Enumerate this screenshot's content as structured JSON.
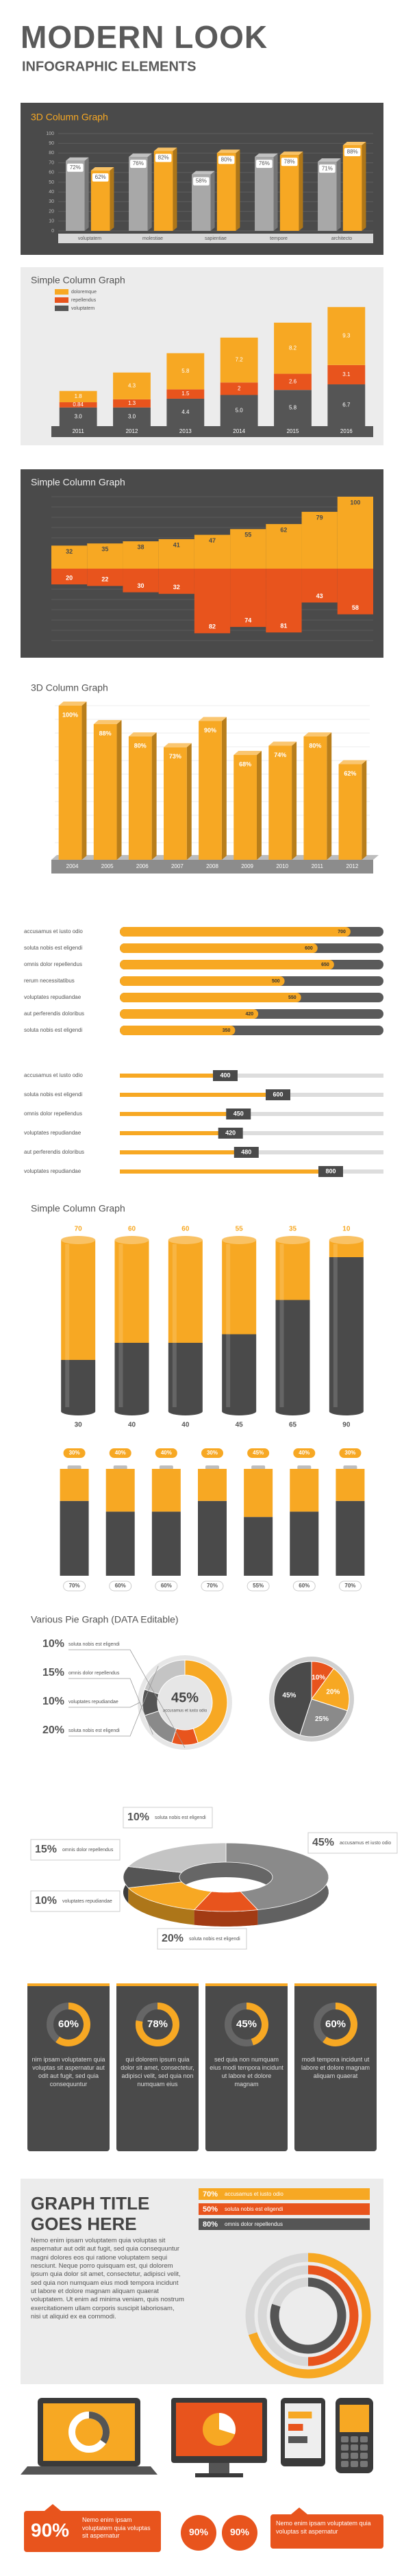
{
  "header": {
    "title": "MODERN LOOK",
    "subtitle": "INFOGRAPHIC ELEMENTS"
  },
  "chart_data": [
    {
      "type": "bar3d",
      "title": "3D Column Graph",
      "categories": [
        "voluptatem",
        "molestiae",
        "sapientiae",
        "tempore",
        "architecto"
      ],
      "series": [
        {
          "color": "#a8a8a8",
          "values": [
            72,
            76,
            58,
            76,
            71
          ],
          "value_labels": [
            "72%",
            "76%",
            "58%",
            "76%",
            "71%"
          ]
        },
        {
          "color": "#f7a823",
          "values": [
            62,
            82,
            80,
            78,
            88
          ],
          "value_labels": [
            "62%",
            "82%",
            "80%",
            "78%",
            "88%"
          ]
        }
      ],
      "ylim": [
        0,
        100
      ],
      "yticks": [
        0,
        10,
        20,
        30,
        40,
        50,
        60,
        70,
        80,
        90,
        100
      ]
    },
    {
      "type": "stacked_bar",
      "title": "Simple Column Graph",
      "categories": [
        "2011",
        "2012",
        "2013",
        "2014",
        "2015",
        "2016"
      ],
      "series": [
        {
          "name": "voluptatem",
          "color": "#555555",
          "values": [
            3.0,
            3.0,
            4.4,
            5.0,
            5.8,
            6.7
          ],
          "value_labels": [
            "3.0",
            "3.0",
            "4.4",
            "5.0",
            "5.8",
            "6.7"
          ]
        },
        {
          "name": "repellendus",
          "color": "#e8541d",
          "values": [
            0.84,
            1.3,
            1.5,
            2.0,
            2.6,
            3.1
          ]
        },
        {
          "name": "doloremque",
          "color": "#f7a823",
          "values": [
            1.8,
            4.3,
            5.8,
            7.2,
            8.2,
            9.3
          ]
        }
      ],
      "ylim": [
        0,
        20
      ]
    },
    {
      "type": "updown",
      "title": "Simple Column Graph",
      "series": [
        {
          "color": "#f7a823",
          "values": [
            32,
            35,
            38,
            41,
            47,
            55,
            62,
            79,
            100
          ]
        },
        {
          "color": "#e8541d",
          "values": [
            20,
            22,
            30,
            32,
            82,
            74,
            81,
            43,
            58
          ]
        }
      ],
      "ylim": [
        0,
        100
      ]
    },
    {
      "type": "column3d",
      "title": "3D Column Graph",
      "categories": [
        "2004",
        "2005",
        "2006",
        "2007",
        "2008",
        "2009",
        "2010",
        "2011",
        "2012"
      ],
      "values": [
        100,
        88,
        80,
        73,
        90,
        68,
        74,
        80,
        62
      ],
      "value_labels": [
        "100%",
        "88%",
        "80%",
        "73%",
        "90%",
        "68%",
        "74%",
        "80%",
        "62%"
      ],
      "color": "#f7a823",
      "ylim": [
        0,
        100
      ]
    },
    {
      "type": "hbar_progress",
      "categories": [
        "accusamus et iusto odio",
        "soluta nobis est eligendi",
        "omnis dolor repellendus",
        "rerum necessitatibus",
        "voluptates repudiandae",
        "aut perferendis doloribus",
        "soluta nobis est eligendi"
      ],
      "values": [
        700,
        600,
        650,
        500,
        550,
        420,
        350
      ],
      "color": "#f7a823",
      "xlim": [
        0,
        800
      ]
    },
    {
      "type": "hbar_marker",
      "categories": [
        "accusamus et iusto odio",
        "soluta nobis est eligendi",
        "omnis dolor repellendus",
        "voluptates repudiandae",
        "aut perferendis doloribus",
        "voluptates repudiandae"
      ],
      "values": [
        400,
        600,
        450,
        420,
        480,
        800
      ],
      "color": "#f7a823",
      "xlim": [
        0,
        1000
      ]
    },
    {
      "type": "cylinder",
      "title": "Simple Column Graph",
      "series": [
        {
          "color": "#f7a823",
          "values": [
            70,
            60,
            60,
            55,
            35,
            10
          ]
        },
        {
          "color": "#4a4a4a",
          "values": [
            30,
            40,
            40,
            45,
            65,
            90
          ]
        }
      ],
      "ylim": [
        0,
        100
      ]
    },
    {
      "type": "battery",
      "series": [
        {
          "color": "#f7a823",
          "values": [
            30,
            40,
            40,
            30,
            45,
            40,
            30
          ],
          "value_labels": [
            "30%",
            "40%",
            "40%",
            "30%",
            "45%",
            "40%",
            "30%"
          ]
        },
        {
          "color": "#4a4a4a",
          "values": [
            70,
            60,
            60,
            70,
            55,
            60,
            70
          ],
          "value_labels": [
            "70%",
            "60%",
            "60%",
            "70%",
            "55%",
            "60%",
            "70%"
          ]
        }
      ],
      "ylim": [
        0,
        100
      ]
    },
    {
      "type": "donut",
      "title": "Various Pie Graph (DATA Editable)",
      "categories": [
        "accusamus et iusto odio",
        "soluta nobis est eligendi",
        "omnis dolor repellendus",
        "voluptates repudiandae",
        "soluta nobis est eligendi"
      ],
      "values": [
        45,
        10,
        15,
        10,
        20
      ],
      "value_labels": [
        "45%",
        "10%",
        "15%",
        "10%",
        "20%"
      ],
      "colors": [
        "#f7a823",
        "#e8541d",
        "#8a8a8a",
        "#555555",
        "#c4c4c4"
      ]
    },
    {
      "type": "pie",
      "values": [
        10,
        20,
        25,
        45
      ],
      "value_labels": [
        "10%",
        "20%",
        "25%",
        "45%"
      ],
      "colors": [
        "#e8541d",
        "#f7a823",
        "#8a8a8a",
        "#4a4a4a"
      ]
    },
    {
      "type": "donut3d",
      "categories": [
        "accusamus et iusto odio",
        "soluta nobis est eligendi",
        "omnis dolor repellendus",
        "voluptates repudiandae",
        "soluta nobis est eligendi"
      ],
      "values": [
        45,
        10,
        15,
        10,
        20
      ],
      "value_labels": [
        "45%",
        "10%",
        "15%",
        "10%",
        "20%"
      ],
      "colors": [
        "#8a8a8a",
        "#e8541d",
        "#f7a823",
        "#555555",
        "#c4c4c4"
      ]
    },
    {
      "type": "donut_cards",
      "values": [
        60,
        78,
        45,
        60
      ],
      "value_labels": [
        "60%",
        "78%",
        "45%",
        "60%"
      ],
      "color": "#f7a823",
      "captions": [
        "nim ipsam voluptatem quia voluptas sit aspernatur aut odit aut fugit, sed quia consequuntur",
        "qui dolorem ipsum quia dolor sit amet, consectetur, adipisci velit, sed quia non numquam eius",
        "sed quia non numquam eius modi tempora incidunt ut labore et dolore magnam",
        "modi tempora incidunt ut labore et dolore magnam aliquam quaerat"
      ]
    },
    {
      "type": "radial_bar",
      "title_lines": [
        "GRAPH TITLE",
        "GOES HERE"
      ],
      "body": "Nemo enim ipsam voluptatem quia voluptas sit aspernatur aut odit aut fugit, sed quia consequuntur magni dolores eos qui ratione voluptatem sequi nesciunt. Neque porro quisquam est, qui dolorem ipsum quia dolor sit amet, consectetur, adipisci velit, sed quia non numquam eius modi tempora incidunt ut labore et dolore magnam aliquam quaerat voluptatem. Ut enim ad minima veniam, quis nostrum exercitationem ullam corporis suscipit laboriosam, nisi ut aliquid ex ea commodi.",
      "categories": [
        "accusamus et iusto odio",
        "soluta nobis est eligendi",
        "omnis dolor repellendus"
      ],
      "values": [
        70,
        50,
        80
      ],
      "value_labels": [
        "70%",
        "50%",
        "80%"
      ],
      "colors": [
        "#f7a823",
        "#e8541d",
        "#555555"
      ]
    }
  ],
  "devices": {
    "callouts": [
      {
        "label": "90%",
        "text": "Nemo enim ipsam voluptatem quia voluptas sit aspernatur"
      },
      {
        "label": "90%"
      },
      {
        "label": "90%"
      },
      {
        "text": "Nemo enim ipsam voluptatem quia voluptas sit aspernatur"
      }
    ]
  }
}
